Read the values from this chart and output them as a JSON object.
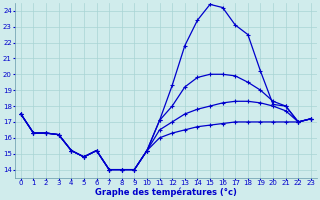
{
  "title": "Graphe des températures (°c)",
  "bg_color": "#d0ecec",
  "grid_color": "#a8d4d4",
  "line_color": "#0000cc",
  "xlim": [
    -0.5,
    23.5
  ],
  "ylim": [
    13.5,
    24.5
  ],
  "yticks": [
    14,
    15,
    16,
    17,
    18,
    19,
    20,
    21,
    22,
    23,
    24
  ],
  "xticks": [
    0,
    1,
    2,
    3,
    4,
    5,
    6,
    7,
    8,
    9,
    10,
    11,
    12,
    13,
    14,
    15,
    16,
    17,
    18,
    19,
    20,
    21,
    22,
    23
  ],
  "series": [
    {
      "x": [
        0,
        1,
        2,
        3,
        4,
        5,
        6,
        7,
        8,
        9,
        10,
        11,
        12,
        13,
        14,
        15,
        16,
        17,
        18,
        19,
        20,
        21,
        22,
        23
      ],
      "y": [
        17.5,
        16.3,
        16.3,
        16.2,
        15.2,
        14.8,
        15.2,
        14.0,
        14.0,
        14.0,
        15.2,
        17.1,
        19.3,
        21.8,
        23.4,
        24.4,
        24.2,
        23.1,
        22.5,
        20.2,
        18.1,
        18.0,
        17.0,
        17.2
      ]
    },
    {
      "x": [
        0,
        1,
        2,
        3,
        4,
        5,
        6,
        7,
        8,
        9,
        10,
        11,
        12,
        13,
        14,
        15,
        16,
        17,
        18,
        19,
        20,
        21,
        22,
        23
      ],
      "y": [
        17.5,
        16.3,
        16.3,
        16.2,
        15.2,
        14.8,
        15.2,
        14.0,
        14.0,
        14.0,
        15.2,
        17.1,
        18.0,
        19.2,
        19.8,
        20.0,
        20.0,
        19.9,
        19.5,
        19.0,
        18.3,
        18.0,
        17.0,
        17.2
      ]
    },
    {
      "x": [
        0,
        1,
        2,
        3,
        4,
        5,
        6,
        7,
        8,
        9,
        10,
        11,
        12,
        13,
        14,
        15,
        16,
        17,
        18,
        19,
        20,
        21,
        22,
        23
      ],
      "y": [
        17.5,
        16.3,
        16.3,
        16.2,
        15.2,
        14.8,
        15.2,
        14.0,
        14.0,
        14.0,
        15.2,
        16.5,
        17.0,
        17.5,
        17.8,
        18.0,
        18.2,
        18.3,
        18.3,
        18.2,
        18.0,
        17.7,
        17.0,
        17.2
      ]
    },
    {
      "x": [
        0,
        1,
        2,
        3,
        4,
        5,
        6,
        7,
        8,
        9,
        10,
        11,
        12,
        13,
        14,
        15,
        16,
        17,
        18,
        19,
        20,
        21,
        22,
        23
      ],
      "y": [
        17.5,
        16.3,
        16.3,
        16.2,
        15.2,
        14.8,
        15.2,
        14.0,
        14.0,
        14.0,
        15.2,
        16.0,
        16.3,
        16.5,
        16.7,
        16.8,
        16.9,
        17.0,
        17.0,
        17.0,
        17.0,
        17.0,
        17.0,
        17.2
      ]
    }
  ],
  "marker": "+",
  "markersize": 3,
  "linewidth": 0.9,
  "xlabel_fontsize": 6,
  "tick_fontsize": 5
}
